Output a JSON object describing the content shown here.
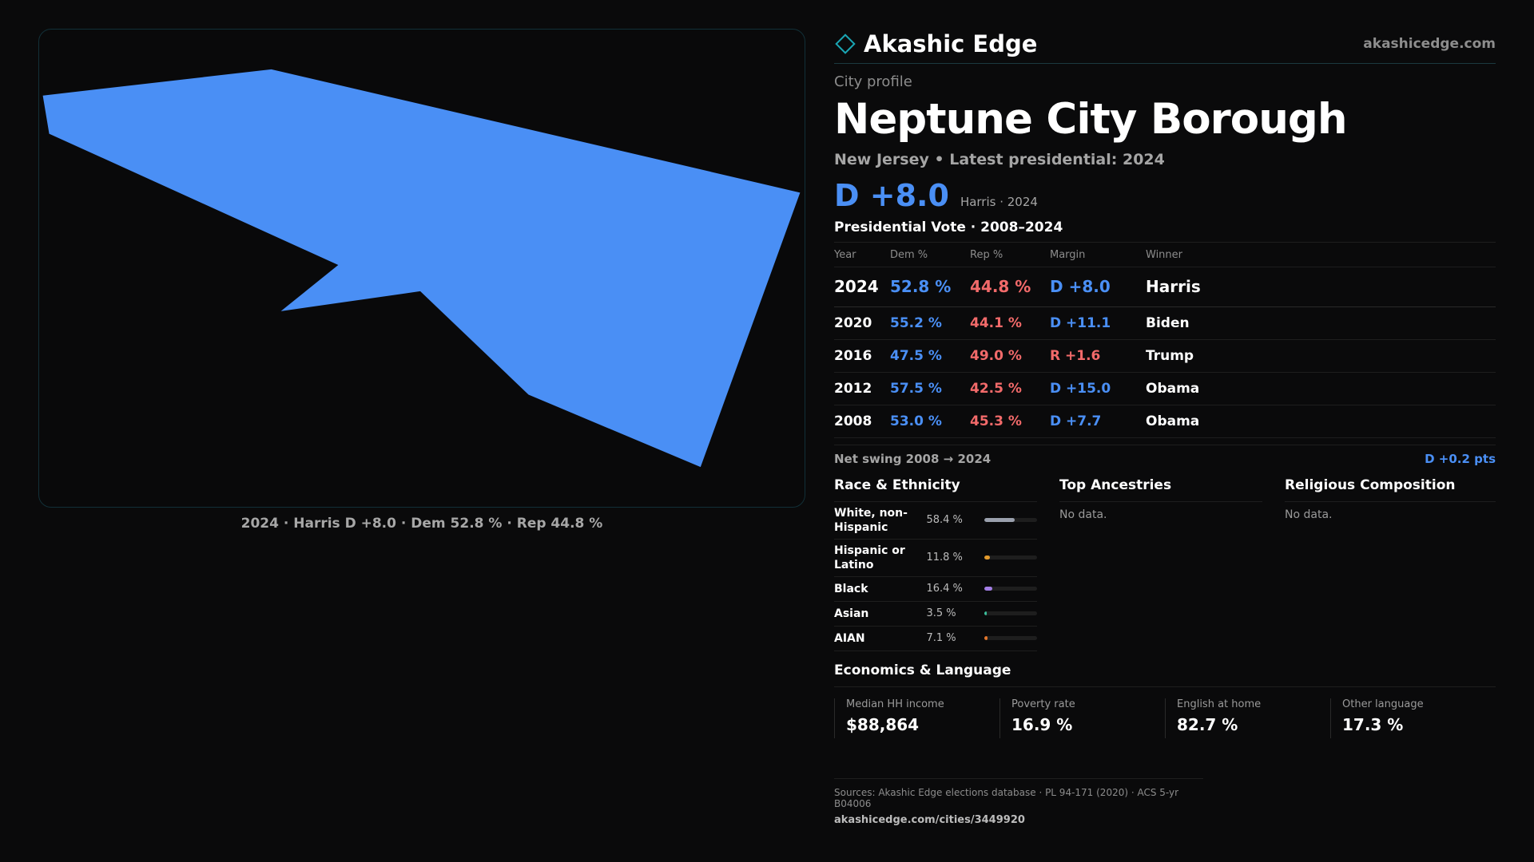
{
  "map": {
    "fill_color": "#4a8ff5",
    "caption": "2024 · Harris D +8.0 · Dem 52.8 % · Rep 44.8 %"
  },
  "header": {
    "brand": "Akashic Edge",
    "url": "akashicedge.com"
  },
  "profile": {
    "eyebrow": "City profile",
    "title": "Neptune City Borough",
    "subtitle": "New Jersey • Latest presidential: 2024",
    "margin": "D +8.0",
    "margin_note": "Harris · 2024"
  },
  "votes": {
    "title": "Presidential Vote · 2008–2024",
    "headers": {
      "year": "Year",
      "dem": "Dem %",
      "rep": "Rep %",
      "margin": "Margin",
      "winner": "Winner"
    },
    "rows": [
      {
        "year": "2024",
        "dem": "52.8 %",
        "rep": "44.8 %",
        "margin": "D +8.0",
        "party": "D",
        "winner": "Harris"
      },
      {
        "year": "2020",
        "dem": "55.2 %",
        "rep": "44.1 %",
        "margin": "D +11.1",
        "party": "D",
        "winner": "Biden"
      },
      {
        "year": "2016",
        "dem": "47.5 %",
        "rep": "49.0 %",
        "margin": "R +1.6",
        "party": "R",
        "winner": "Trump"
      },
      {
        "year": "2012",
        "dem": "57.5 %",
        "rep": "42.5 %",
        "margin": "D +15.0",
        "party": "D",
        "winner": "Obama"
      },
      {
        "year": "2008",
        "dem": "53.0 %",
        "rep": "45.3 %",
        "margin": "D +7.7",
        "party": "D",
        "winner": "Obama"
      }
    ],
    "swing_label": "Net swing 2008 → 2024",
    "swing_value": "D +0.2 pts"
  },
  "race": {
    "title": "Race & Ethnicity",
    "rows": [
      {
        "label": "White, non-Hispanic",
        "value": "58.4 %",
        "pct": 58.4,
        "color": "#9aa0ad"
      },
      {
        "label": "Hispanic or Latino",
        "value": "11.8 %",
        "pct": 11.8,
        "color": "#e39a2c"
      },
      {
        "label": "Black",
        "value": "16.4 %",
        "pct": 16.4,
        "color": "#a37ee6"
      },
      {
        "label": "Asian",
        "value": "3.5 %",
        "pct": 3.5,
        "color": "#3bbf9c"
      },
      {
        "label": "AIAN",
        "value": "7.1 %",
        "pct": 7.1,
        "color": "#e3762c"
      }
    ]
  },
  "ancestries": {
    "title": "Top Ancestries",
    "empty": "No data."
  },
  "religion": {
    "title": "Religious Composition",
    "empty": "No data."
  },
  "economics": {
    "title": "Economics & Language",
    "items": [
      {
        "label": "Median HH income",
        "value": "$88,864"
      },
      {
        "label": "Poverty rate",
        "value": "16.9 %"
      },
      {
        "label": "English at home",
        "value": "82.7 %"
      },
      {
        "label": "Other language",
        "value": "17.3 %"
      }
    ]
  },
  "footer": {
    "sources": "Sources: Akashic Edge elections database · PL 94-171 (2020) · ACS 5-yr B04006",
    "link": "akashicedge.com/cities/3449920"
  }
}
